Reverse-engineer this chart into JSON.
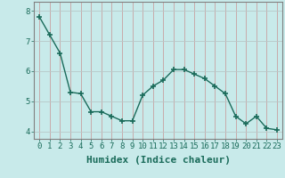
{
  "x": [
    0,
    1,
    2,
    3,
    4,
    5,
    6,
    7,
    8,
    9,
    10,
    11,
    12,
    13,
    14,
    15,
    16,
    17,
    18,
    19,
    20,
    21,
    22,
    23
  ],
  "y": [
    7.8,
    7.2,
    6.6,
    5.3,
    5.25,
    4.65,
    4.65,
    4.5,
    4.35,
    4.35,
    5.2,
    5.5,
    5.7,
    6.05,
    6.05,
    5.9,
    5.75,
    5.5,
    5.25,
    4.5,
    4.25,
    4.5,
    4.1,
    4.05
  ],
  "line_color": "#1a6b5a",
  "marker": "+",
  "bg_color": "#c8eaea",
  "grid_color": "#b0c8c8",
  "axis_color": "#808080",
  "tick_color": "#1a6b5a",
  "xlabel": "Humidex (Indice chaleur)",
  "ylim": [
    3.75,
    8.3
  ],
  "xlim": [
    -0.5,
    23.5
  ],
  "yticks": [
    4,
    5,
    6,
    7,
    8
  ],
  "xticks": [
    0,
    1,
    2,
    3,
    4,
    5,
    6,
    7,
    8,
    9,
    10,
    11,
    12,
    13,
    14,
    15,
    16,
    17,
    18,
    19,
    20,
    21,
    22,
    23
  ],
  "xlabel_fontsize": 8,
  "tick_fontsize": 6.5,
  "line_width": 1.0,
  "marker_size": 5
}
